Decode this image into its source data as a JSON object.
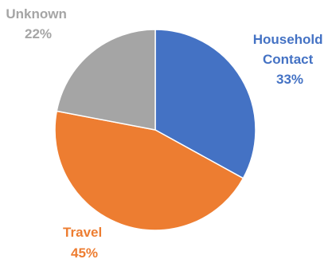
{
  "chart_data": {
    "type": "pie",
    "start_angle_deg": 0,
    "direction": "clockwise",
    "legend": "none",
    "slices": [
      {
        "label_lines": [
          "Household",
          "Contact"
        ],
        "percent_label": "33%",
        "value": 33,
        "color": "#4472C4"
      },
      {
        "label_lines": [
          "Travel"
        ],
        "percent_label": "45%",
        "value": 45,
        "color": "#ED7D31"
      },
      {
        "label_lines": [
          "Unknown"
        ],
        "percent_label": "22%",
        "value": 22,
        "color": "#A5A5A5"
      }
    ]
  }
}
